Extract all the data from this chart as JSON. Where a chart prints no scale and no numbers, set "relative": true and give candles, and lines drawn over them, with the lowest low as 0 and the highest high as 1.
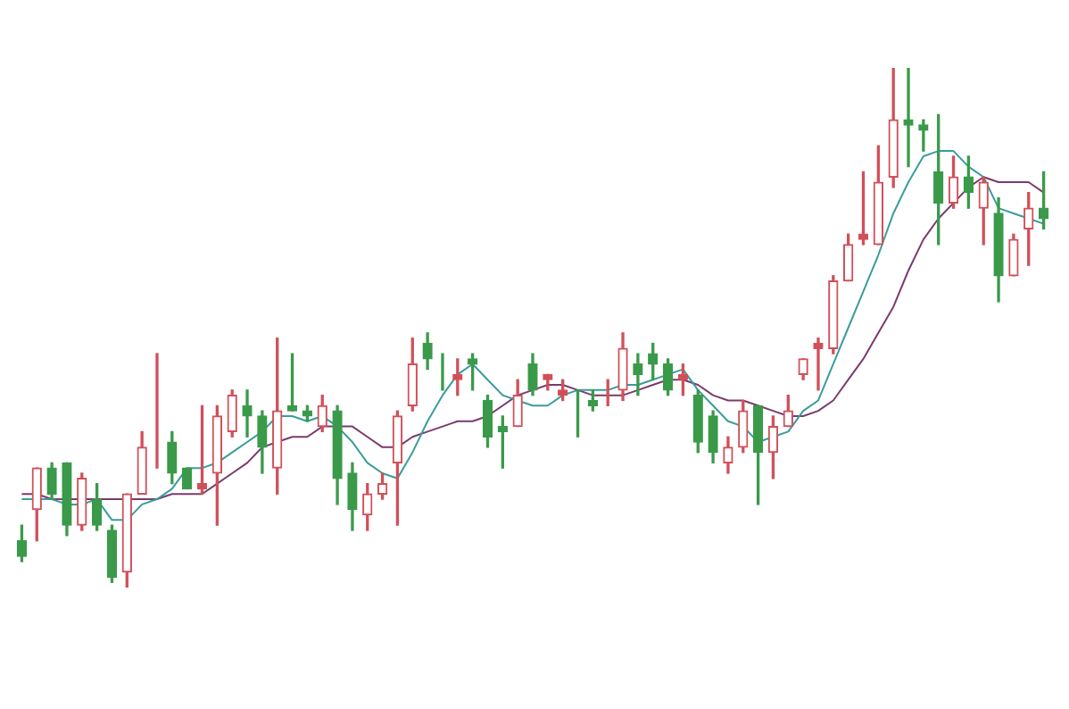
{
  "chart_data": {
    "type": "candlestick",
    "relative": true,
    "categories": [
      null,
      null,
      null,
      null,
      null,
      null,
      null,
      null,
      null,
      null,
      null,
      null,
      null,
      null,
      null,
      null,
      null,
      null,
      null,
      null,
      null,
      null,
      null,
      null,
      null,
      null,
      null,
      null,
      null,
      null,
      null,
      null,
      null,
      null,
      null,
      null,
      null,
      null,
      null,
      null,
      null,
      null,
      null,
      null,
      null,
      null,
      null,
      null,
      null,
      null,
      null,
      null,
      null,
      null,
      null,
      null,
      null,
      null,
      null,
      null,
      null,
      null,
      null,
      null,
      null,
      null,
      null,
      null,
      null
    ],
    "ohlc": [
      [
        0.09,
        0.12,
        0.05,
        0.06
      ],
      [
        0.15,
        0.23,
        0.09,
        0.23
      ],
      [
        0.23,
        0.24,
        0.17,
        0.18
      ],
      [
        0.24,
        0.24,
        0.1,
        0.12
      ],
      [
        0.12,
        0.22,
        0.11,
        0.21
      ],
      [
        0.17,
        0.2,
        0.11,
        0.12
      ],
      [
        0.11,
        0.12,
        0.01,
        0.02
      ],
      [
        0.03,
        0.18,
        0,
        0.18
      ],
      [
        0.18,
        0.3,
        0.18,
        0.27
      ],
      [
        0.27,
        0.45,
        0.23,
        0.27
      ],
      [
        0.28,
        0.3,
        0.2,
        0.22
      ],
      [
        0.23,
        0.23,
        0.19,
        0.19
      ],
      [
        0.19,
        0.35,
        0.18,
        0.2
      ],
      [
        0.22,
        0.35,
        0.12,
        0.33
      ],
      [
        0.3,
        0.38,
        0.29,
        0.37
      ],
      [
        0.35,
        0.38,
        0.29,
        0.33
      ],
      [
        0.33,
        0.34,
        0.22,
        0.27
      ],
      [
        0.23,
        0.48,
        0.18,
        0.34
      ],
      [
        0.35,
        0.45,
        0.34,
        0.34
      ],
      [
        0.34,
        0.35,
        0.32,
        0.33
      ],
      [
        0.31,
        0.37,
        0.3,
        0.35
      ],
      [
        0.34,
        0.35,
        0.16,
        0.21
      ],
      [
        0.22,
        0.24,
        0.11,
        0.15
      ],
      [
        0.14,
        0.2,
        0.11,
        0.18
      ],
      [
        0.18,
        0.22,
        0.17,
        0.2
      ],
      [
        0.24,
        0.34,
        0.12,
        0.33
      ],
      [
        0.35,
        0.48,
        0.34,
        0.43
      ],
      [
        0.47,
        0.49,
        0.42,
        0.44
      ],
      [
        0.43,
        0.45,
        0.38,
        0.43
      ],
      [
        0.4,
        0.44,
        0.37,
        0.41
      ],
      [
        0.44,
        0.45,
        0.38,
        0.43
      ],
      [
        0.36,
        0.37,
        0.27,
        0.29
      ],
      [
        0.31,
        0.33,
        0.23,
        0.3
      ],
      [
        0.31,
        0.4,
        0.31,
        0.37
      ],
      [
        0.43,
        0.45,
        0.37,
        0.38
      ],
      [
        0.4,
        0.41,
        0.38,
        0.41
      ],
      [
        0.37,
        0.4,
        0.36,
        0.38
      ],
      [
        0.37,
        0.38,
        0.29,
        0.37
      ],
      [
        0.36,
        0.38,
        0.34,
        0.35
      ],
      [
        0.37,
        0.4,
        0.35,
        0.37
      ],
      [
        0.38,
        0.49,
        0.36,
        0.46
      ],
      [
        0.43,
        0.45,
        0.37,
        0.41
      ],
      [
        0.45,
        0.47,
        0.4,
        0.43
      ],
      [
        0.43,
        0.44,
        0.37,
        0.38
      ],
      [
        0.4,
        0.43,
        0.37,
        0.41
      ],
      [
        0.37,
        0.38,
        0.26,
        0.28
      ],
      [
        0.33,
        0.34,
        0.24,
        0.26
      ],
      [
        0.24,
        0.29,
        0.22,
        0.27
      ],
      [
        0.27,
        0.36,
        0.26,
        0.34
      ],
      [
        0.35,
        0.35,
        0.16,
        0.26
      ],
      [
        0.26,
        0.33,
        0.21,
        0.31
      ],
      [
        0.31,
        0.37,
        0.31,
        0.34
      ],
      [
        0.41,
        0.44,
        0.4,
        0.44
      ],
      [
        0.46,
        0.48,
        0.38,
        0.47
      ],
      [
        0.46,
        0.6,
        0.45,
        0.59
      ],
      [
        0.59,
        0.68,
        0.59,
        0.66
      ],
      [
        0.67,
        0.8,
        0.66,
        0.68
      ],
      [
        0.66,
        0.85,
        0.66,
        0.78
      ],
      [
        0.79,
        1,
        0.77,
        0.9
      ],
      [
        0.9,
        1,
        0.81,
        0.89
      ],
      [
        0.89,
        0.9,
        0.84,
        0.88
      ],
      [
        0.8,
        0.91,
        0.66,
        0.74
      ],
      [
        0.74,
        0.83,
        0.73,
        0.79
      ],
      [
        0.79,
        0.83,
        0.73,
        0.76
      ],
      [
        0.73,
        0.79,
        0.66,
        0.78
      ],
      [
        0.72,
        0.75,
        0.55,
        0.6
      ],
      [
        0.6,
        0.68,
        0.6,
        0.67
      ],
      [
        0.69,
        0.76,
        0.62,
        0.73
      ],
      [
        0.73,
        0.8,
        0.69,
        0.71
      ]
    ],
    "colors": [
      "#3a9a4a",
      "#d0505a",
      "#3a9a4a",
      "#3a9a4a",
      "#d0505a",
      "#3a9a4a",
      "#3a9a4a",
      "#d0505a",
      "#d0505a",
      "#d0505a",
      "#3a9a4a",
      "#3a9a4a",
      "#d0505a",
      "#d0505a",
      "#d0505a",
      "#3a9a4a",
      "#3a9a4a",
      "#d0505a",
      "#3a9a4a",
      "#3a9a4a",
      "#d0505a",
      "#3a9a4a",
      "#3a9a4a",
      "#d0505a",
      "#d0505a",
      "#d0505a",
      "#d0505a",
      "#3a9a4a",
      "#3a9a4a",
      "#d0505a",
      "#3a9a4a",
      "#3a9a4a",
      "#3a9a4a",
      "#d0505a",
      "#3a9a4a",
      "#d0505a",
      "#d0505a",
      "#3a9a4a",
      "#3a9a4a",
      "#d0505a",
      "#d0505a",
      "#3a9a4a",
      "#3a9a4a",
      "#3a9a4a",
      "#d0505a",
      "#3a9a4a",
      "#3a9a4a",
      "#d0505a",
      "#d0505a",
      "#3a9a4a",
      "#d0505a",
      "#d0505a",
      "#d0505a",
      "#d0505a",
      "#d0505a",
      "#d0505a",
      "#d0505a",
      "#d0505a",
      "#d0505a",
      "#3a9a4a",
      "#3a9a4a",
      "#3a9a4a",
      "#d0505a",
      "#3a9a4a",
      "#d0505a",
      "#3a9a4a",
      "#d0505a",
      "#d0505a",
      "#3a9a4a"
    ],
    "series": [
      {
        "type": "line",
        "color": "#3a9c9c",
        "values": [
          0.17,
          0.17,
          0.17,
          0.16,
          0.16,
          0.17,
          0.13,
          0.13,
          0.16,
          0.17,
          0.19,
          0.23,
          0.23,
          0.24,
          0.26,
          0.28,
          0.3,
          0.33,
          0.33,
          0.32,
          0.33,
          0.31,
          0.28,
          0.24,
          0.22,
          0.21,
          0.26,
          0.32,
          0.37,
          0.41,
          0.43,
          0.4,
          0.37,
          0.36,
          0.35,
          0.35,
          0.37,
          0.38,
          0.38,
          0.38,
          0.39,
          0.39,
          0.4,
          0.41,
          0.42,
          0.38,
          0.35,
          0.32,
          0.31,
          0.28,
          0.29,
          0.3,
          0.34,
          0.36,
          0.43,
          0.5,
          0.57,
          0.64,
          0.72,
          0.78,
          0.83,
          0.84,
          0.84,
          0.81,
          0.79,
          0.73,
          0.72,
          0.71,
          0.7
        ]
      },
      {
        "type": "line",
        "color": "#7a3b6e",
        "values": [
          0.18,
          0.18,
          0.17,
          0.17,
          0.17,
          0.17,
          0.17,
          0.17,
          0.17,
          0.17,
          0.18,
          0.18,
          0.18,
          0.2,
          0.22,
          0.24,
          0.27,
          0.28,
          0.29,
          0.29,
          0.31,
          0.31,
          0.31,
          0.29,
          0.27,
          0.27,
          0.29,
          0.3,
          0.31,
          0.32,
          0.32,
          0.33,
          0.35,
          0.37,
          0.38,
          0.39,
          0.39,
          0.38,
          0.37,
          0.37,
          0.37,
          0.38,
          0.39,
          0.4,
          0.4,
          0.39,
          0.37,
          0.36,
          0.36,
          0.35,
          0.34,
          0.33,
          0.33,
          0.34,
          0.36,
          0.4,
          0.44,
          0.49,
          0.54,
          0.61,
          0.67,
          0.71,
          0.74,
          0.77,
          0.79,
          0.78,
          0.78,
          0.78,
          0.76
        ]
      }
    ]
  }
}
